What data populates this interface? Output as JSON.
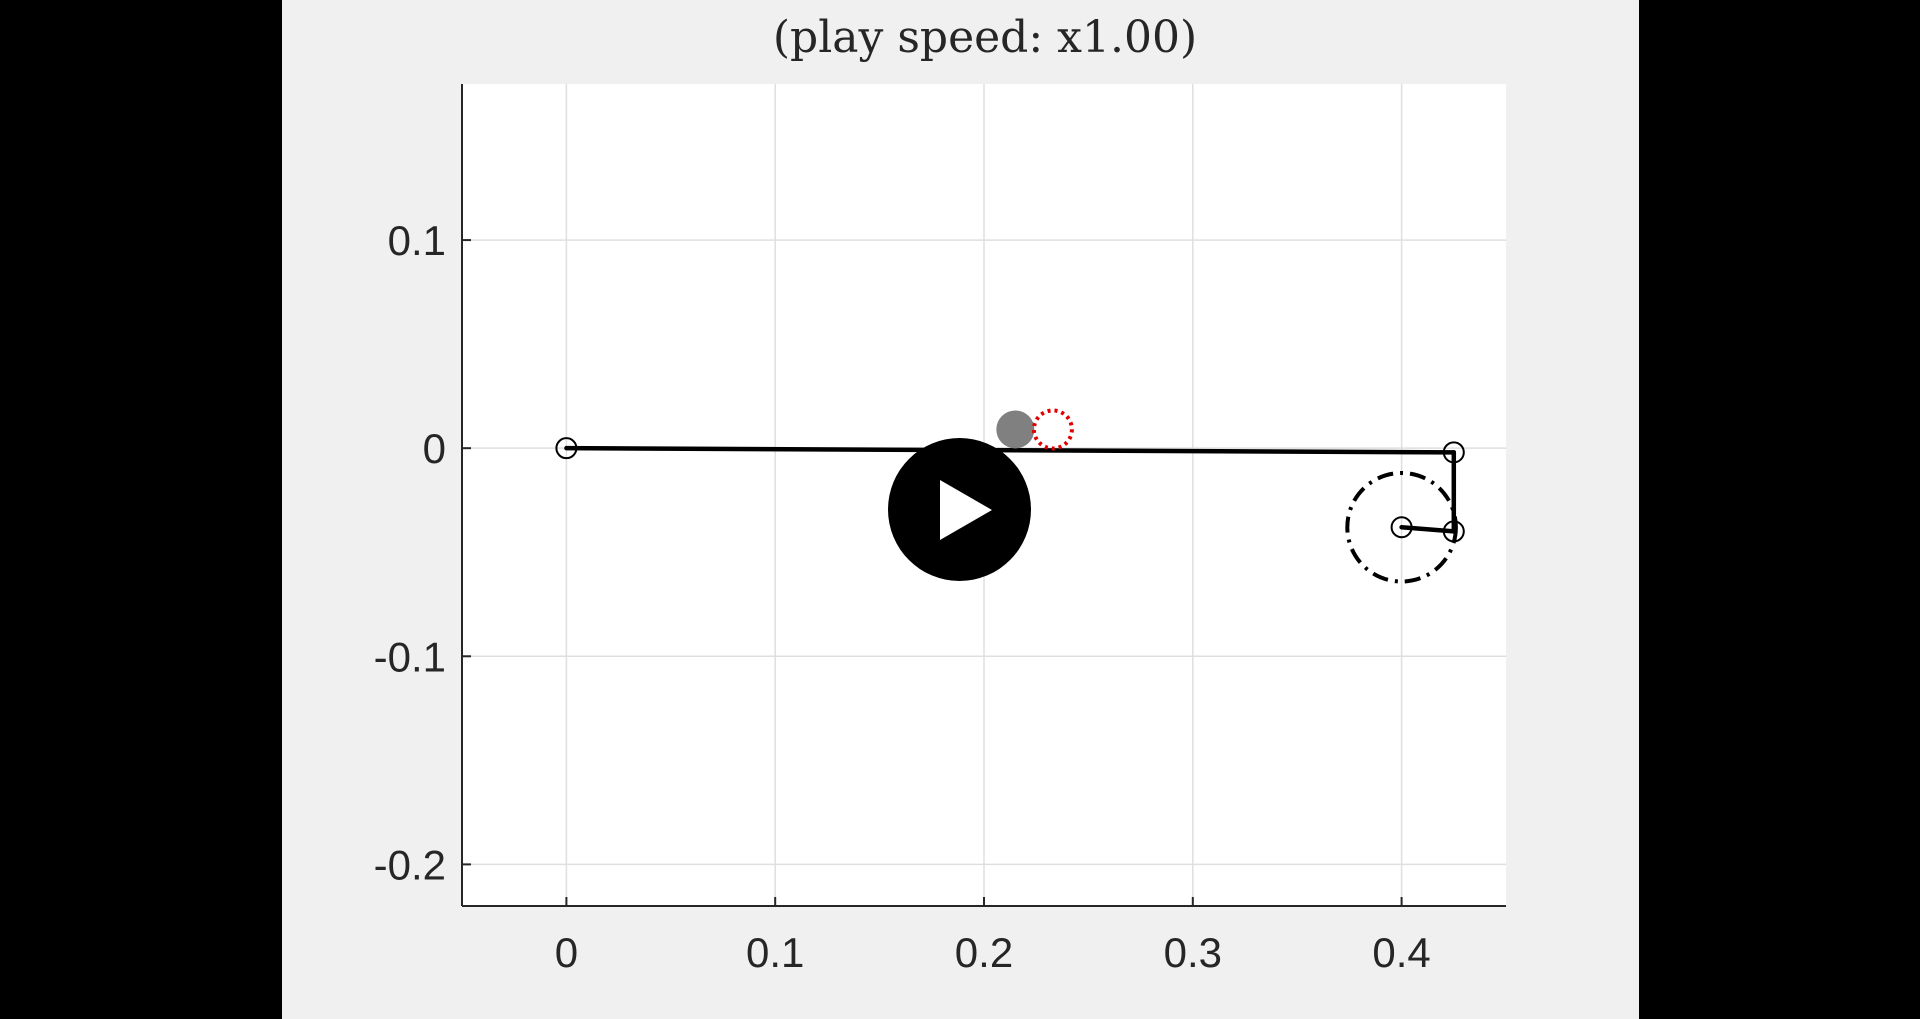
{
  "player": {
    "title": "(play speed: x1.00)",
    "play_icon": "play-icon"
  },
  "chart_data": {
    "type": "line",
    "title": "(play speed: x1.00)",
    "xlabel": "",
    "ylabel": "",
    "xlim": [
      -0.05,
      0.45
    ],
    "ylim": [
      -0.22,
      0.175
    ],
    "grid": true,
    "xticks": [
      0,
      0.1,
      0.2,
      0.3,
      0.4
    ],
    "xtick_labels": [
      "0",
      "0.1",
      "0.2",
      "0.3",
      "0.4"
    ],
    "yticks": [
      0.1,
      0,
      -0.1,
      -0.2
    ],
    "ytick_labels": [
      "0.1",
      "0",
      "-0.1",
      "-0.2"
    ],
    "linkage": [
      {
        "x": 0,
        "y": 0
      },
      {
        "x": 0.425,
        "y": -0.002
      },
      {
        "x": 0.425,
        "y": -0.04
      },
      {
        "x": 0.4,
        "y": -0.038
      }
    ],
    "joints": [
      {
        "x": 0,
        "y": 0
      },
      {
        "x": 0.425,
        "y": -0.002
      },
      {
        "x": 0.425,
        "y": -0.04
      },
      {
        "x": 0.4,
        "y": -0.038
      }
    ],
    "target_circle": {
      "cx": 0.4,
      "cy": -0.038,
      "r": 0.026,
      "style": "dash-dot",
      "color": "#000000"
    },
    "ball": {
      "x": 0.215,
      "y": 0.009,
      "color": "#808080"
    },
    "ball_target": {
      "x": 0.233,
      "y": 0.009,
      "color": "#e00000",
      "style": "dotted"
    }
  },
  "colors": {
    "figure_bg": "#f0f0f0",
    "axes_bg": "#ffffff",
    "grid": "#dfdfdf",
    "axis": "#262626",
    "link": "#000000"
  }
}
